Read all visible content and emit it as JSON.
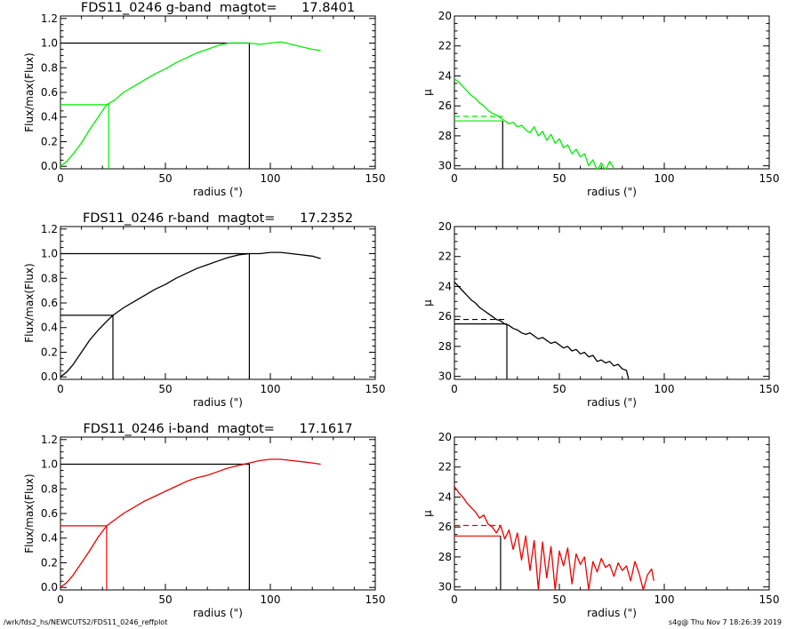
{
  "footer": {
    "path": "/wrk/fds2_hs/NEWCUTS2/FDS11_0246_reffplot",
    "stamp": "s4g@  Thu Nov  7 18:26:39 2019"
  },
  "chart_data": [
    {
      "type": "line",
      "panel": "g-band growth curve",
      "title": "FDS11_0246 g-band  magtot=      17.8401",
      "xlabel": "radius (\")",
      "ylabel": "Flux/max(Flux)",
      "xlim": [
        0,
        150
      ],
      "ylim": [
        -0.02,
        1.22
      ],
      "xticks": [
        0,
        50,
        100,
        150
      ],
      "yticks": [
        0.0,
        0.2,
        0.4,
        0.6,
        0.8,
        1.0,
        1.2
      ],
      "line_color": "#00ee00",
      "series": [
        {
          "x": [
            0,
            3,
            6,
            10,
            14,
            18,
            22,
            26,
            30,
            35,
            40,
            45,
            50,
            55,
            60,
            65,
            70,
            75,
            80,
            85,
            90,
            95,
            100,
            105,
            110,
            115,
            120,
            124
          ],
          "y": [
            0.0,
            0.04,
            0.1,
            0.19,
            0.3,
            0.4,
            0.5,
            0.54,
            0.6,
            0.65,
            0.7,
            0.75,
            0.79,
            0.84,
            0.88,
            0.92,
            0.95,
            0.98,
            1.0,
            1.0,
            1.0,
            0.99,
            1.0,
            1.01,
            0.99,
            0.97,
            0.95,
            0.94
          ]
        }
      ],
      "guides": {
        "half_radius": 23,
        "half_level": 0.5,
        "total_radius": 90,
        "total_level": 1.0
      }
    },
    {
      "type": "line",
      "panel": "g-band surface brightness",
      "xlabel": "radius (\")",
      "ylabel": "μ",
      "xlim": [
        0,
        150
      ],
      "ylim": [
        30.2,
        20
      ],
      "y_inverted": true,
      "xticks": [
        0,
        50,
        100,
        150
      ],
      "yticks": [
        20,
        22,
        24,
        26,
        28,
        30
      ],
      "line_color": "#00ee00",
      "series": [
        {
          "x": [
            0,
            2,
            4,
            6,
            8,
            10,
            12,
            14,
            16,
            18,
            20,
            22,
            24,
            26,
            28,
            30,
            32,
            34,
            36,
            38,
            40,
            42,
            44,
            46,
            48,
            50,
            52,
            54,
            56,
            58,
            60,
            62,
            64,
            66,
            68,
            70,
            72,
            74,
            76
          ],
          "y": [
            24.2,
            24.4,
            24.7,
            25.0,
            25.3,
            25.5,
            25.8,
            26.0,
            26.3,
            26.5,
            26.6,
            26.8,
            27.0,
            27.2,
            27.1,
            27.4,
            27.3,
            27.6,
            27.8,
            27.4,
            28.0,
            27.7,
            28.3,
            27.9,
            28.5,
            28.2,
            28.8,
            28.6,
            29.2,
            28.9,
            29.4,
            29.2,
            30.0,
            29.6,
            30.3,
            29.8,
            30.3,
            29.7,
            30.2
          ]
        }
      ],
      "guides": {
        "dashed_level": 26.7,
        "solid_level": 27.0,
        "radius": 23
      }
    },
    {
      "type": "line",
      "panel": "r-band growth curve",
      "title": "FDS11_0246 r-band  magtot=      17.2352",
      "xlabel": "radius (\")",
      "ylabel": "Flux/max(Flux)",
      "xlim": [
        0,
        150
      ],
      "ylim": [
        -0.02,
        1.22
      ],
      "xticks": [
        0,
        50,
        100,
        150
      ],
      "yticks": [
        0.0,
        0.2,
        0.4,
        0.6,
        0.8,
        1.0,
        1.2
      ],
      "line_color": "#000000",
      "series": [
        {
          "x": [
            0,
            3,
            6,
            10,
            14,
            18,
            22,
            25,
            30,
            35,
            40,
            45,
            50,
            55,
            60,
            65,
            70,
            75,
            80,
            85,
            90,
            95,
            100,
            105,
            110,
            115,
            120,
            124
          ],
          "y": [
            0.0,
            0.04,
            0.1,
            0.2,
            0.3,
            0.38,
            0.45,
            0.5,
            0.56,
            0.61,
            0.66,
            0.71,
            0.75,
            0.8,
            0.84,
            0.88,
            0.91,
            0.94,
            0.97,
            0.99,
            1.0,
            1.0,
            1.01,
            1.01,
            1.0,
            0.99,
            0.98,
            0.96
          ]
        }
      ],
      "guides": {
        "half_radius": 25,
        "half_level": 0.5,
        "total_radius": 90,
        "total_level": 1.0
      }
    },
    {
      "type": "line",
      "panel": "r-band surface brightness",
      "xlabel": "radius (\")",
      "ylabel": "μ",
      "xlim": [
        0,
        150
      ],
      "ylim": [
        30.2,
        20
      ],
      "y_inverted": true,
      "xticks": [
        0,
        50,
        100,
        150
      ],
      "yticks": [
        20,
        22,
        24,
        26,
        28,
        30
      ],
      "line_color": "#000000",
      "series": [
        {
          "x": [
            0,
            2,
            4,
            6,
            8,
            10,
            12,
            14,
            16,
            18,
            20,
            22,
            24,
            26,
            28,
            30,
            32,
            34,
            36,
            38,
            40,
            42,
            44,
            46,
            48,
            50,
            52,
            54,
            56,
            58,
            60,
            62,
            64,
            66,
            68,
            70,
            72,
            74,
            76,
            78,
            80,
            82,
            83
          ],
          "y": [
            23.7,
            24.0,
            24.3,
            24.6,
            24.9,
            25.1,
            25.4,
            25.6,
            25.8,
            26.0,
            26.2,
            26.3,
            26.5,
            26.6,
            26.8,
            26.9,
            27.1,
            27.2,
            27.1,
            27.3,
            27.5,
            27.4,
            27.6,
            27.8,
            27.7,
            27.9,
            28.1,
            28.0,
            28.3,
            28.2,
            28.5,
            28.4,
            28.7,
            28.6,
            29.0,
            28.9,
            29.1,
            29.0,
            29.3,
            29.2,
            29.5,
            29.6,
            30.2
          ]
        }
      ],
      "guides": {
        "dashed_level": 26.2,
        "solid_level": 26.5,
        "radius": 25
      }
    },
    {
      "type": "line",
      "panel": "i-band growth curve",
      "title": "FDS11_0246 i-band  magtot=      17.1617",
      "xlabel": "radius (\")",
      "ylabel": "Flux/max(Flux)",
      "xlim": [
        0,
        150
      ],
      "ylim": [
        -0.02,
        1.22
      ],
      "xticks": [
        0,
        50,
        100,
        150
      ],
      "yticks": [
        0.0,
        0.2,
        0.4,
        0.6,
        0.8,
        1.0,
        1.2
      ],
      "line_color": "#ee0000",
      "series": [
        {
          "x": [
            0,
            3,
            6,
            10,
            14,
            18,
            22,
            26,
            30,
            35,
            40,
            45,
            50,
            55,
            60,
            65,
            70,
            75,
            80,
            85,
            90,
            95,
            100,
            105,
            110,
            115,
            120,
            124
          ],
          "y": [
            0.0,
            0.04,
            0.1,
            0.2,
            0.3,
            0.41,
            0.5,
            0.55,
            0.6,
            0.65,
            0.7,
            0.74,
            0.78,
            0.82,
            0.86,
            0.89,
            0.91,
            0.94,
            0.97,
            0.99,
            1.01,
            1.03,
            1.04,
            1.04,
            1.03,
            1.02,
            1.01,
            1.0
          ]
        }
      ],
      "guides": {
        "half_radius": 22,
        "half_level": 0.5,
        "total_radius": 90,
        "total_level": 1.0
      }
    },
    {
      "type": "line",
      "panel": "i-band surface brightness",
      "xlabel": "radius (\")",
      "ylabel": "μ",
      "xlim": [
        0,
        150
      ],
      "ylim": [
        30.2,
        20
      ],
      "y_inverted": true,
      "xticks": [
        0,
        50,
        100,
        150
      ],
      "yticks": [
        20,
        22,
        24,
        26,
        28,
        30
      ],
      "line_color": "#ee0000",
      "series": [
        {
          "x": [
            0,
            2,
            4,
            6,
            8,
            10,
            12,
            14,
            16,
            18,
            20,
            22,
            24,
            26,
            28,
            30,
            32,
            34,
            36,
            38,
            40,
            42,
            44,
            46,
            48,
            50,
            52,
            54,
            56,
            58,
            60,
            62,
            64,
            66,
            68,
            70,
            72,
            74,
            76,
            78,
            80,
            82,
            84,
            86,
            88,
            90,
            92,
            94,
            95
          ],
          "y": [
            23.3,
            23.7,
            24.0,
            24.4,
            24.7,
            25.0,
            25.4,
            25.2,
            25.8,
            26.0,
            26.4,
            25.9,
            26.8,
            26.2,
            27.5,
            26.4,
            28.2,
            26.6,
            28.9,
            26.9,
            30.2,
            27.0,
            29.4,
            27.3,
            30.2,
            27.6,
            28.6,
            27.4,
            29.8,
            27.8,
            28.5,
            28.0,
            30.2,
            28.3,
            29.0,
            28.1,
            28.7,
            28.5,
            29.3,
            28.4,
            28.9,
            28.6,
            29.6,
            28.3,
            29.1,
            30.2,
            29.2,
            28.8,
            29.6
          ]
        }
      ],
      "guides": {
        "dashed_level": 25.9,
        "solid_level": 26.6,
        "radius": 22
      }
    }
  ]
}
